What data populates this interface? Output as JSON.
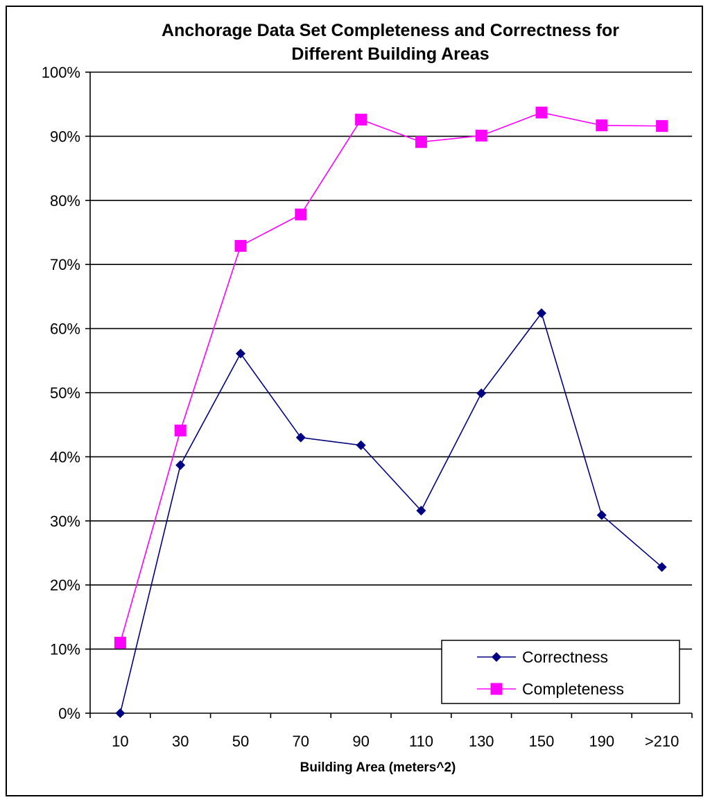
{
  "chart_data": {
    "type": "line",
    "title_lines": [
      "Anchorage Data Set Completeness and Correctness for",
      "Different Building Areas"
    ],
    "xlabel": "Building Area (meters^2)",
    "ylabel": "",
    "categories": [
      "10",
      "30",
      "50",
      "70",
      "90",
      "110",
      "130",
      "150",
      "190",
      ">210"
    ],
    "ylim": [
      0,
      100
    ],
    "yticks": [
      0,
      10,
      20,
      30,
      40,
      50,
      60,
      70,
      80,
      90,
      100
    ],
    "ytick_labels": [
      "0%",
      "10%",
      "20%",
      "30%",
      "40%",
      "50%",
      "60%",
      "70%",
      "80%",
      "90%",
      "100%"
    ],
    "grid": "horizontal",
    "legend_position": "bottom-right",
    "series": [
      {
        "name": "Correctness",
        "color": "#000080",
        "marker": "diamond",
        "values": [
          0,
          38.7,
          56.1,
          43.0,
          41.8,
          31.6,
          49.9,
          62.4,
          30.9,
          22.8
        ]
      },
      {
        "name": "Completeness",
        "color": "#ff00ff",
        "marker": "square",
        "values": [
          11.0,
          44.1,
          72.9,
          77.8,
          92.6,
          89.1,
          90.1,
          93.7,
          91.7,
          91.6
        ]
      }
    ]
  }
}
